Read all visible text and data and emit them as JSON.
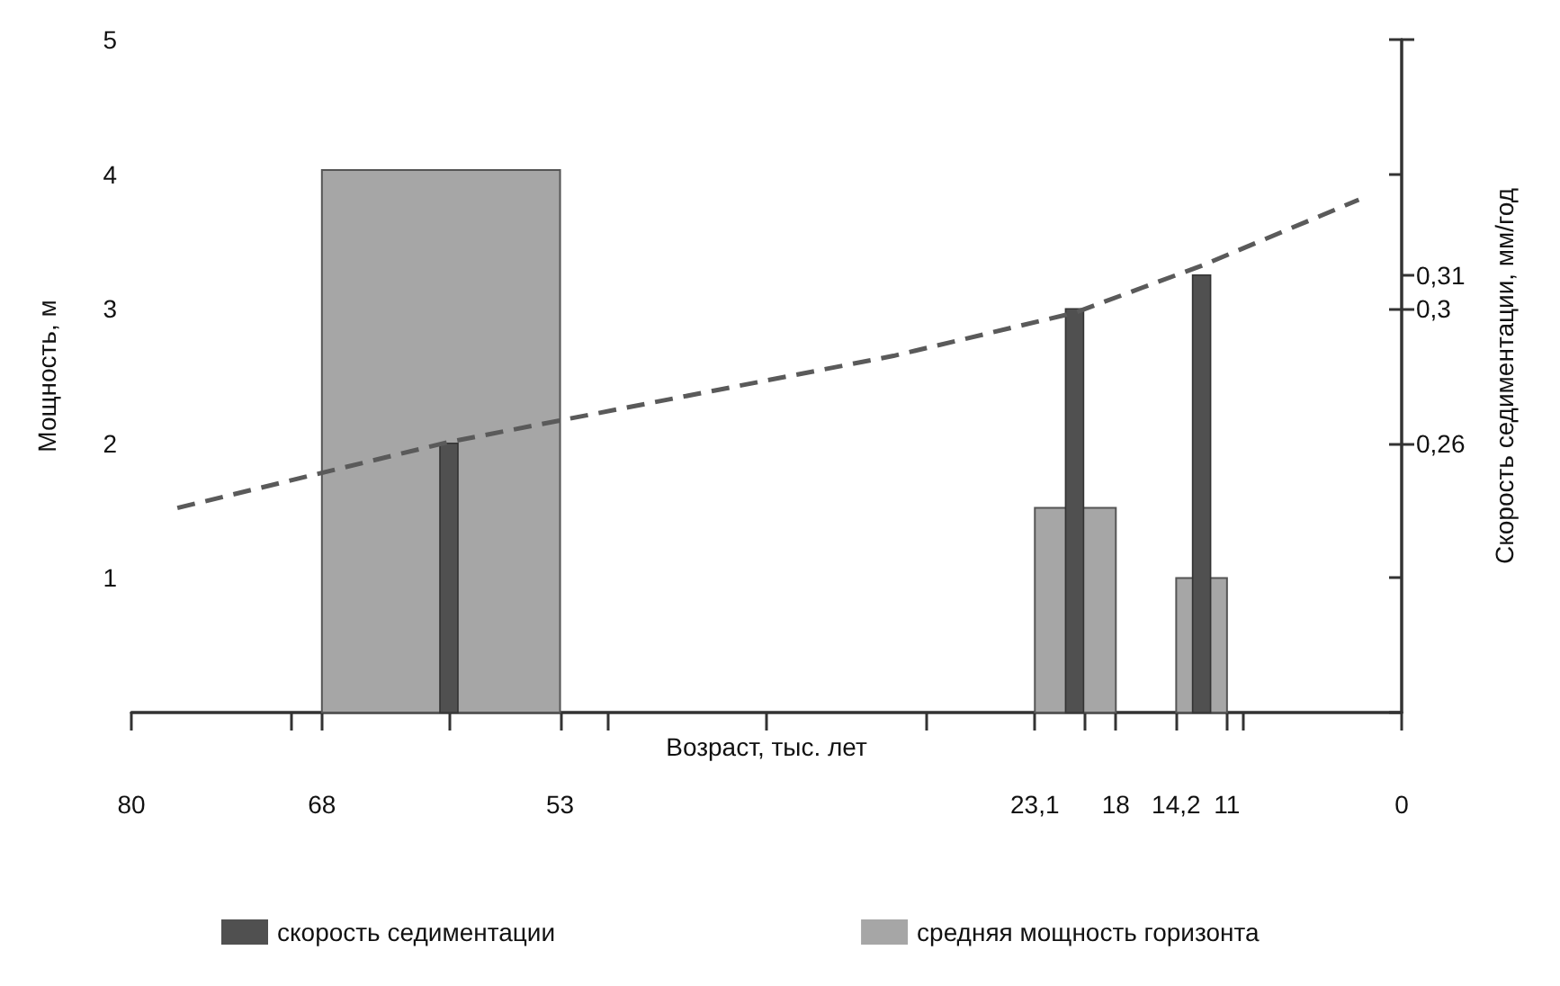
{
  "chart_data": {
    "type": "bar",
    "xlabel": "Возраст, тыс. лет",
    "ylabel": "Мощность, м",
    "y2label": "Скорость седиментации, мм/год",
    "xlim": [
      80,
      0
    ],
    "xticks": [
      80,
      {
        "value": 70,
        "label": null
      },
      68,
      {
        "value": 60,
        "label": null
      },
      53,
      {
        "value": 50,
        "label": null
      },
      {
        "value": 40,
        "label": null
      },
      {
        "value": 30,
        "label": null
      },
      {
        "value": 23.1,
        "label": "23,1"
      },
      {
        "value": 20,
        "label": null
      },
      18,
      {
        "value": 14.2,
        "label": "14,2"
      },
      11,
      {
        "value": 10,
        "label": null
      },
      0
    ],
    "ylim": [
      0,
      5
    ],
    "yticks": [
      {
        "value": 0,
        "label": null
      },
      1,
      2,
      3,
      4,
      5
    ],
    "y2lim": [
      0.18,
      0.38
    ],
    "y2ticks": [
      {
        "value": 0.26,
        "label": "0,26"
      },
      {
        "value": 0.3,
        "label": "0,3"
      },
      {
        "value": 0.31,
        "label": "0,31"
      },
      {
        "value": 0.38,
        "label": null
      }
    ],
    "grid": false,
    "legend": "bottom",
    "series": [
      {
        "type": "histogram",
        "name": "средняя мощность горизонта",
        "color": "#a6a6a6",
        "bins": [
          68,
          53,
          23.1,
          18,
          14.2,
          11
        ],
        "values": [
          4.03,
          null,
          1.52,
          null,
          1.0
        ]
      },
      {
        "type": "bar",
        "name": "скорость седиментации",
        "color": "#505050",
        "axis": "y2",
        "x": [
          60,
          20.6,
          12.6
        ],
        "values": [
          0.26,
          0.3,
          0.31
        ]
      },
      {
        "type": "line",
        "color": "#5a5a5a",
        "line_style": "dashed",
        "marker": "none",
        "x": [
          77.1,
          60,
          32,
          20.6,
          12.6,
          2.7
        ],
        "values": [
          1.52,
          2.01,
          2.65,
          2.97,
          3.32,
          3.81
        ]
      }
    ]
  }
}
